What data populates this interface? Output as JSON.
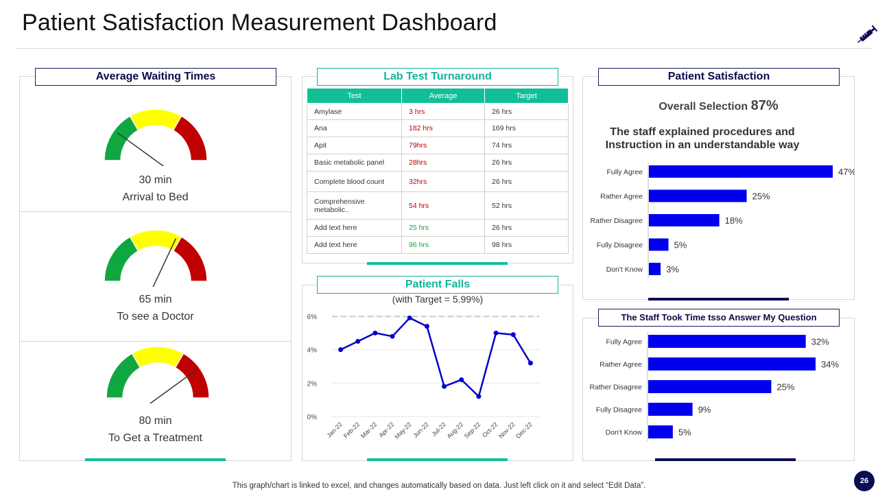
{
  "title": "Patient Satisfaction Measurement Dashboard",
  "page_number": "26",
  "footer": "This graph/chart is linked to excel, and changes automatically based on data. Just left click on it and select “Edit Data”.",
  "colors": {
    "accent_green": "#11bf97",
    "navy": "#0b0b56",
    "bar_blue": "#0000ee",
    "gauge_green": "#0fa840",
    "gauge_yellow": "#ffff00",
    "gauge_red": "#c00000"
  },
  "waiting": {
    "title": "Average Waiting Times",
    "gauges": [
      {
        "value": "30 min",
        "label": "Arrival to Bed",
        "needle_fraction": 0.2
      },
      {
        "value": "65 min",
        "label": "To see a Doctor",
        "needle_fraction": 0.64
      },
      {
        "value": "80 min",
        "label": "To Get a Treatment",
        "needle_fraction": 0.8
      }
    ]
  },
  "lab": {
    "title": "Lab Test Turnaround",
    "headers": [
      "Test",
      "Average",
      "Target"
    ],
    "rows": [
      {
        "test": "Amylase",
        "average": "3 hrs",
        "target": "26 hrs",
        "status": "red"
      },
      {
        "test": "Ana",
        "average": "182 hrs",
        "target": "169 hrs",
        "status": "red"
      },
      {
        "test": "Apit",
        "average": "79hrs",
        "target": "74 hrs",
        "status": "red"
      },
      {
        "test": "Basic metabolic panel",
        "average": "28hrs",
        "target": "26 hrs",
        "status": "red"
      },
      {
        "test": "Complete  blood count",
        "average": "32hrs",
        "target": "26 hrs",
        "status": "red"
      },
      {
        "test": "Comprehensive metabolic..",
        "average": "54 hrs",
        "target": "52 hrs",
        "status": "red"
      },
      {
        "test": "Add text here",
        "average": "25 hrs",
        "target": "26 hrs",
        "status": "green"
      },
      {
        "test": "Add text here",
        "average": "96 hrs",
        "target": "98 hrs",
        "status": "green"
      }
    ]
  },
  "falls": {
    "title": "Patient Falls",
    "subtitle": "(with Target = 5.99%)"
  },
  "satisfaction": {
    "title": "Patient Satisfaction",
    "overall_label": "Overall  Selection",
    "overall_value": "87%",
    "question": "The staff explained procedures and Instruction in an understandable way"
  },
  "answer": {
    "title": "The Staff Took Time tsso Answer My Question"
  },
  "chart_data": [
    {
      "type": "line",
      "title": "Patient Falls",
      "subtitle": "(with Target = 5.99%)",
      "categories": [
        "Jan-22",
        "Feb-22",
        "Mar-22",
        "Apr-22",
        "May-22",
        "Jun-22",
        "Jul-22",
        "Aug-22",
        "Sep-22",
        "Oct-22",
        "Nov-22",
        "Dec-22"
      ],
      "values": [
        4.0,
        4.5,
        5.0,
        4.8,
        5.9,
        5.4,
        1.8,
        2.2,
        1.2,
        5.0,
        4.9,
        3.2
      ],
      "target": 5.99,
      "ylim": [
        0,
        6
      ],
      "yticks": [
        0,
        2,
        4,
        6
      ],
      "ytick_labels": [
        "0%",
        "2%",
        "4%",
        "6%"
      ]
    },
    {
      "type": "bar",
      "orientation": "horizontal",
      "title": "The staff explained procedures and Instruction in an understandable way",
      "categories": [
        "Fully Agree",
        "Rather Agree",
        "Rather Disagree",
        "Fully Disagree",
        "Don't Know"
      ],
      "values": [
        47,
        25,
        18,
        5,
        3
      ],
      "value_labels": [
        "47%",
        "25%",
        "18%",
        "5%",
        "3%"
      ],
      "xlim": [
        0,
        47
      ]
    },
    {
      "type": "bar",
      "orientation": "horizontal",
      "title": "The Staff Took Time tsso Answer My Question",
      "categories": [
        "Fully Agree",
        "Rather Agree",
        "Rather Disagree",
        "Fully Disagree",
        "Don't Know"
      ],
      "values": [
        32,
        34,
        25,
        9,
        5
      ],
      "value_labels": [
        "32%",
        "34%",
        "25%",
        "9%",
        "5%"
      ],
      "xlim": [
        0,
        34
      ]
    }
  ]
}
